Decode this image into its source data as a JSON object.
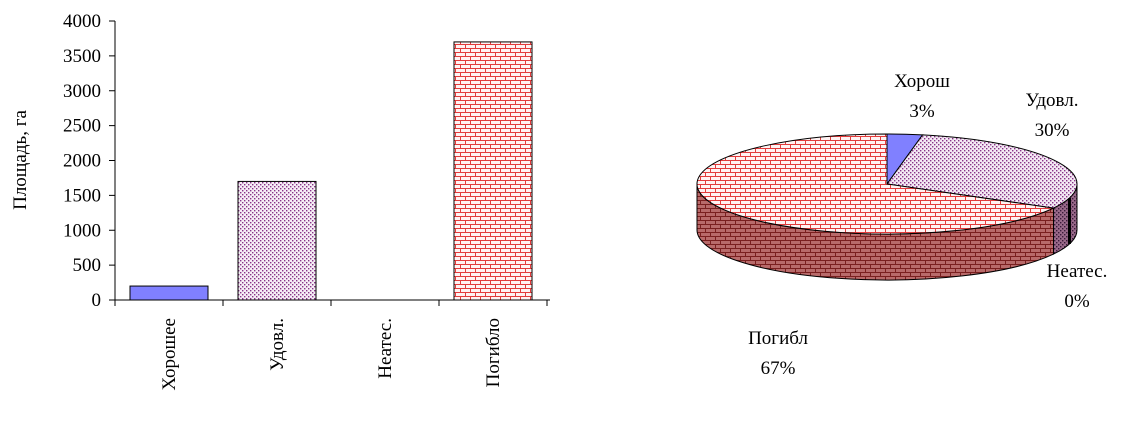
{
  "chart_data": [
    {
      "type": "bar",
      "ylabel": "Площадь, га",
      "ylim": [
        0,
        4000
      ],
      "yticks": [
        "0",
        "500",
        "1000",
        "1500",
        "2000",
        "2500",
        "3000",
        "3500",
        "4000"
      ],
      "categories": [
        "Хорошее",
        "Удовл.",
        "Неатес.",
        "Погибло"
      ],
      "values": [
        200,
        1700,
        0,
        3700
      ],
      "colors": [
        "#8080ff",
        "#cc99cc",
        "#ffffff",
        "#ff8080"
      ],
      "grid": false
    },
    {
      "type": "pie",
      "style": "3d",
      "labels": [
        "Хорош",
        "Удовл.",
        "Неатес.",
        "Погибл"
      ],
      "percents": [
        "3%",
        "30%",
        "0%",
        "67%"
      ],
      "values": [
        3,
        30,
        0,
        67
      ],
      "colors": [
        "#8080ff",
        "#cc99cc",
        "#993366",
        "#ff8080"
      ]
    }
  ]
}
